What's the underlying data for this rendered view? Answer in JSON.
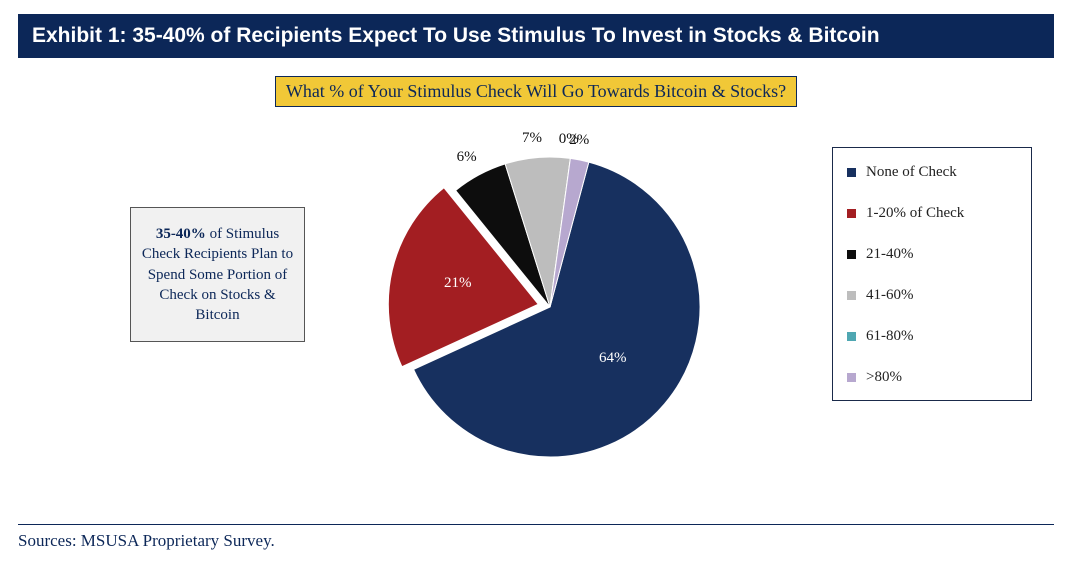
{
  "header": {
    "title": "Exhibit 1: 35-40% of Recipients Expect To Use Stimulus To Invest in Stocks & Bitcoin"
  },
  "subtitle": "What % of Your Stimulus Check Will Go Towards Bitcoin & Stocks?",
  "callout": {
    "bold_prefix": "35-40%",
    "text_rest": " of Stimulus Check Recipients Plan to Spend Some Portion of Check on Stocks & Bitcoin"
  },
  "pie": {
    "type": "pie",
    "background_color": "#ffffff",
    "radius": 150,
    "label_fontsize": 15,
    "slices": [
      {
        "label": "None of Check",
        "value": 64,
        "display": "64%",
        "color": "#17305f"
      },
      {
        "label": "1-20% of Check",
        "value": 21,
        "display": "21%",
        "color": "#a31e22"
      },
      {
        "label": "21-40%",
        "value": 6,
        "display": "6%",
        "color": "#0d0d0d"
      },
      {
        "label": "41-60%",
        "value": 7,
        "display": "7%",
        "color": "#bdbdbd"
      },
      {
        "label": "61-80%",
        "value": 0,
        "display": "0%",
        "color": "#4fa7b2"
      },
      {
        "label": ">80%",
        "value": 2,
        "display": "2%",
        "color": "#b7a8cf"
      }
    ],
    "explode_index": 1,
    "explode_distance": 12
  },
  "legend_border_color": "#1a2a4a",
  "sources": "Sources: MSUSA Proprietary Survey."
}
